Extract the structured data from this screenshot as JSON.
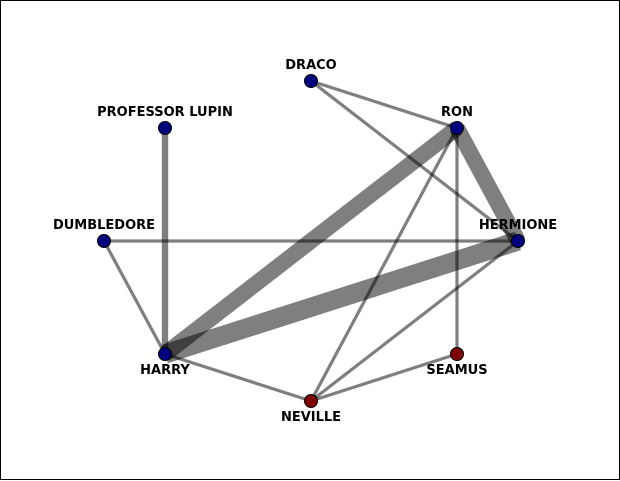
{
  "colors": {
    "blue_node": "#00007f",
    "red_node": "#7f0000",
    "edge": "#000000",
    "background": "#ffffff"
  },
  "nodes": [
    {
      "id": "draco",
      "label": "DRACO",
      "color": "blue_node"
    },
    {
      "id": "lupin",
      "label": "PROFESSOR LUPIN",
      "color": "blue_node"
    },
    {
      "id": "ron",
      "label": "RON",
      "color": "blue_node"
    },
    {
      "id": "dumbledore",
      "label": "DUMBLEDORE",
      "color": "blue_node"
    },
    {
      "id": "hermione",
      "label": "HERMIONE",
      "color": "blue_node"
    },
    {
      "id": "harry",
      "label": "HARRY",
      "color": "blue_node"
    },
    {
      "id": "seamus",
      "label": "SEAMUS",
      "color": "red_node"
    },
    {
      "id": "neville",
      "label": "NEVILLE",
      "color": "red_node"
    }
  ],
  "edges": [
    {
      "source": "draco",
      "target": "ron",
      "weight": 1
    },
    {
      "source": "draco",
      "target": "hermione",
      "weight": 1
    },
    {
      "source": "lupin",
      "target": "harry",
      "weight": 2
    },
    {
      "source": "ron",
      "target": "hermione",
      "weight": 5
    },
    {
      "source": "ron",
      "target": "harry",
      "weight": 5
    },
    {
      "source": "ron",
      "target": "seamus",
      "weight": 1
    },
    {
      "source": "ron",
      "target": "neville",
      "weight": 1
    },
    {
      "source": "dumbledore",
      "target": "hermione",
      "weight": 1
    },
    {
      "source": "dumbledore",
      "target": "harry",
      "weight": 1
    },
    {
      "source": "hermione",
      "target": "harry",
      "weight": 6
    },
    {
      "source": "hermione",
      "target": "neville",
      "weight": 1
    },
    {
      "source": "harry",
      "target": "neville",
      "weight": 1
    },
    {
      "source": "seamus",
      "target": "neville",
      "weight": 1
    }
  ]
}
